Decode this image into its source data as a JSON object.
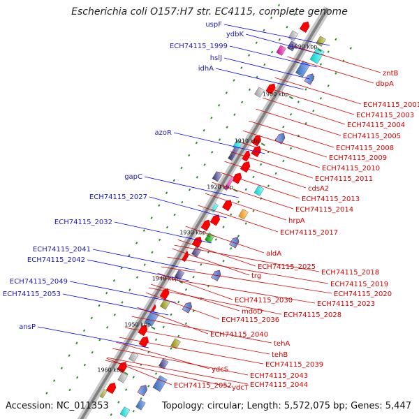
{
  "title": "Escherichia coli O157:H7 str. EC4115, complete genome",
  "accession": "Accession: NC_011353",
  "topology": "Topology: circular; Length: 5,572,075 bp; Genes: 5,447",
  "colors": {
    "label_left": "#1a1ab8",
    "label_right": "#d40000",
    "backbone": "#808080",
    "gene_red": "#ff0000",
    "gene_blue": "#0000ff"
  },
  "kbp_ticks": [
    "1890 kbp",
    "1900 kbp",
    "1910 kbp",
    "1920 kbp",
    "1930 kbp",
    "1940 kbp",
    "1950 kbp",
    "1960 kbp"
  ],
  "genes_left": [
    "uspF",
    "ydbK",
    "ECH74115_1999",
    "hslJ",
    "idhA",
    "azoR",
    "gapC",
    "ECH74115_2027",
    "ECH74115_2032",
    "ECH74115_2041",
    "ECH74115_2042",
    "ECH74115_2049",
    "ECH74115_2053",
    "ansP"
  ],
  "genes_right": [
    "zntB",
    "dbpA",
    "ECH74115_2001",
    "ECH74115_2003",
    "ECH74115_2004",
    "ECH74115_2005",
    "ECH74115_2008",
    "ECH74115_2009",
    "ECH74115_2010",
    "ECH74115_2011",
    "cdsA2",
    "ECH74115_2013",
    "ECH74115_2014",
    "hrpA",
    "ECH74115_2017",
    "aldA",
    "ECH74115_2025",
    "ECH74115_2018",
    "trg",
    "ECH74115_2019",
    "ECH74115_2020",
    "ECH74115_2023",
    "ECH74115_2030",
    "mdoD",
    "ECH74115_2028",
    "ECH74115_2036",
    "ECH74115_2040",
    "tehA",
    "tehB",
    "ECH74115_2039",
    "ydcS",
    "ECH74115_2043",
    "ECH74115_2052",
    "ydcT",
    "ECH74115_2044"
  ]
}
